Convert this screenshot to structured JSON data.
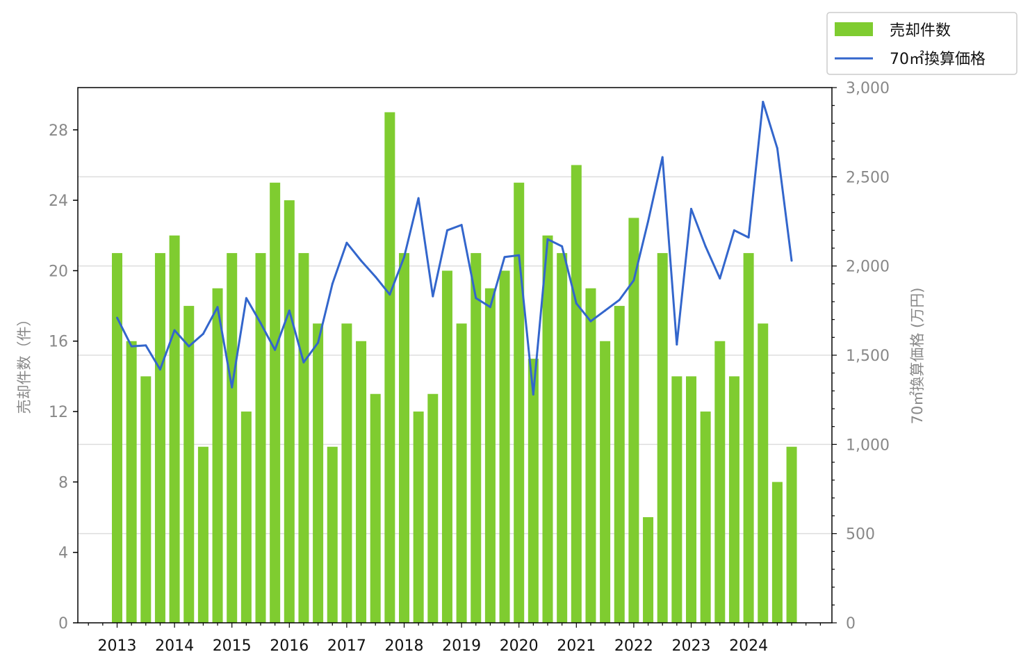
{
  "chart_data": {
    "type": "bar+line",
    "x": [
      "2013Q1",
      "2013Q2",
      "2013Q3",
      "2013Q4",
      "2014Q1",
      "2014Q2",
      "2014Q3",
      "2014Q4",
      "2015Q1",
      "2015Q2",
      "2015Q3",
      "2015Q4",
      "2016Q1",
      "2016Q2",
      "2016Q3",
      "2016Q4",
      "2017Q1",
      "2017Q2",
      "2017Q3",
      "2017Q4",
      "2018Q1",
      "2018Q2",
      "2018Q3",
      "2018Q4",
      "2019Q1",
      "2019Q2",
      "2019Q3",
      "2019Q4",
      "2020Q1",
      "2020Q2",
      "2020Q3",
      "2020Q4",
      "2021Q1",
      "2021Q2",
      "2021Q3",
      "2021Q4",
      "2022Q1",
      "2022Q2",
      "2022Q3",
      "2022Q4",
      "2023Q1",
      "2023Q2",
      "2023Q3",
      "2023Q4",
      "2024Q1",
      "2024Q2",
      "2024Q3",
      "2024Q4"
    ],
    "x_tick_labels": [
      "2013",
      "2014",
      "2015",
      "2016",
      "2017",
      "2018",
      "2019",
      "2020",
      "2021",
      "2022",
      "2023",
      "2024"
    ],
    "series": [
      {
        "name": "売却件数",
        "kind": "bar",
        "axis": "left",
        "color": "#7fcc30",
        "values": [
          21,
          16,
          14,
          21,
          22,
          18,
          10,
          19,
          21,
          12,
          21,
          25,
          24,
          21,
          17,
          10,
          17,
          16,
          13,
          29,
          21,
          12,
          13,
          20,
          17,
          21,
          19,
          20,
          25,
          15,
          22,
          21,
          26,
          19,
          16,
          18,
          23,
          6,
          21,
          14,
          14,
          12,
          16,
          14,
          21,
          17,
          8,
          10
        ]
      },
      {
        "name": "70㎡換算価格",
        "kind": "line",
        "axis": "right",
        "color": "#3366cc",
        "values": [
          1710,
          1550,
          1555,
          1420,
          1640,
          1550,
          1620,
          1770,
          1320,
          1820,
          1680,
          1530,
          1750,
          1460,
          1570,
          1900,
          2130,
          2030,
          1940,
          1840,
          2050,
          2380,
          1830,
          2200,
          2230,
          1820,
          1770,
          2050,
          2060,
          1280,
          2150,
          2110,
          1790,
          1690,
          1750,
          1810,
          1920,
          2250,
          2610,
          1560,
          2320,
          2110,
          1930,
          2200,
          2160,
          2920,
          2660,
          2030
        ]
      }
    ],
    "y_left": {
      "label": "売却件数（件）",
      "ylim": [
        0,
        30.4
      ],
      "ticks": [
        0,
        4,
        8,
        12,
        16,
        20,
        24,
        28
      ]
    },
    "y_right": {
      "label": "70㎡換算価格 (万円)",
      "ylim": [
        0,
        3000
      ],
      "ticks": [
        0,
        500,
        1000,
        1500,
        2000,
        2500,
        3000
      ],
      "tick_labels": [
        "0",
        "500",
        "1,000",
        "1,500",
        "2,000",
        "2,500",
        "3,000"
      ]
    },
    "grid": "horizontal, right axis",
    "legend": "top-right, outside plot"
  }
}
